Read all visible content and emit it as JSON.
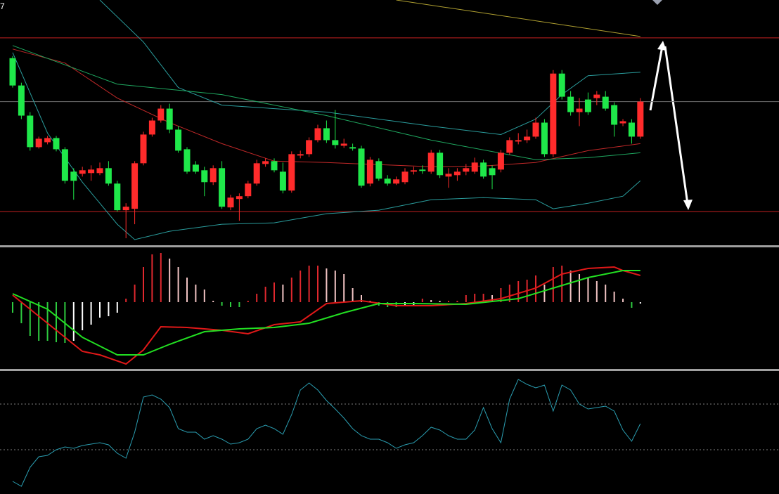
{
  "chart_data": [
    {
      "type": "candlestick",
      "corner_label": "7",
      "x": [
        0,
        1,
        2,
        3,
        4,
        5,
        6,
        7,
        8,
        9,
        10,
        11,
        12,
        13,
        14,
        15,
        16,
        17,
        18,
        19,
        20,
        21,
        22,
        23,
        24,
        25,
        26,
        27,
        28,
        29,
        30,
        31,
        32,
        33,
        34,
        35,
        36,
        37,
        38,
        39,
        40,
        41,
        42,
        43,
        44,
        45,
        46,
        47,
        48,
        49,
        50,
        51,
        52,
        53,
        54,
        55,
        56,
        57,
        58,
        59,
        60,
        61,
        62,
        63,
        64,
        65,
        66,
        67,
        68,
        69,
        70,
        71,
        72
      ],
      "open": [
        267,
        228,
        185,
        140,
        147,
        153,
        137,
        105,
        102,
        103,
        103,
        110,
        88,
        50,
        52,
        117,
        158,
        178,
        195,
        165,
        137,
        115,
        107,
        90,
        110,
        54,
        66,
        70,
        88,
        116,
        120,
        105,
        78,
        128,
        130,
        150,
        167,
        150,
        142,
        140,
        138,
        88,
        120,
        95,
        88,
        90,
        105,
        108,
        105,
        132,
        98,
        100,
        105,
        105,
        118,
        110,
        108,
        132,
        148,
        150,
        155,
        175,
        130,
        245,
        212,
        190,
        208,
        210,
        212,
        200,
        174,
        175,
        155
      ],
      "high": [
        270,
        232,
        190,
        155,
        156,
        156,
        140,
        110,
        112,
        114,
        118,
        120,
        92,
        60,
        120,
        162,
        182,
        200,
        202,
        170,
        140,
        120,
        112,
        114,
        120,
        72,
        74,
        92,
        122,
        124,
        124,
        118,
        134,
        135,
        154,
        172,
        178,
        193,
        152,
        145,
        142,
        126,
        124,
        100,
        98,
        110,
        112,
        114,
        136,
        136,
        110,
        110,
        116,
        125,
        122,
        114,
        136,
        154,
        160,
        165,
        182,
        180,
        250,
        250,
        220,
        210,
        218,
        220,
        220,
        204,
        180,
        180,
        210
      ],
      "low": [
        225,
        180,
        135,
        138,
        144,
        134,
        88,
        65,
        98,
        92,
        100,
        85,
        48,
        10,
        30,
        114,
        155,
        175,
        160,
        132,
        102,
        102,
        70,
        86,
        52,
        50,
        35,
        67,
        85,
        112,
        104,
        74,
        75,
        124,
        126,
        147,
        146,
        138,
        139,
        135,
        82,
        84,
        92,
        85,
        86,
        87,
        101,
        102,
        102,
        96,
        82,
        92,
        100,
        102,
        95,
        80,
        104,
        129,
        144,
        146,
        152,
        126,
        126,
        208,
        185,
        170,
        186,
        200,
        192,
        155,
        170,
        145,
        152
      ],
      "close": [
        228,
        185,
        140,
        152,
        153,
        137,
        92,
        92,
        107,
        108,
        110,
        88,
        50,
        55,
        117,
        158,
        178,
        195,
        165,
        135,
        105,
        105,
        90,
        110,
        55,
        68,
        70,
        88,
        117,
        120,
        107,
        78,
        130,
        130,
        150,
        167,
        150,
        143,
        145,
        138,
        85,
        122,
        95,
        88,
        94,
        105,
        107,
        106,
        132,
        100,
        102,
        105,
        110,
        118,
        98,
        100,
        132,
        150,
        150,
        155,
        175,
        130,
        245,
        212,
        190,
        195,
        190,
        215,
        195,
        172,
        177,
        155,
        205
      ],
      "up_color": "#ff2b2b",
      "down_color": "#1fe84a",
      "ylim": [
        0,
        350
      ],
      "xlim": [
        -1.45,
        87.9
      ],
      "series": [
        {
          "color": "#b0a030",
          "x": [
            44,
            72
          ],
          "values": [
            350,
            298
          ]
        },
        {
          "color": "#2a9d9d",
          "x": [
            10,
            15,
            19,
            24,
            36,
            48,
            56,
            60,
            63,
            66,
            72
          ],
          "values": [
            350,
            290,
            225,
            200,
            190,
            170,
            158,
            180,
            215,
            242,
            247
          ]
        },
        {
          "color": "#2a9d9d",
          "x": [
            0,
            4,
            8,
            12,
            14,
            18,
            24,
            30,
            36,
            42,
            48,
            54,
            60,
            62,
            66,
            70,
            72
          ],
          "values": [
            275,
            160,
            90,
            30,
            8,
            20,
            30,
            32,
            45,
            50,
            65,
            68,
            65,
            52,
            60,
            70,
            92
          ]
        },
        {
          "color": "#c02828",
          "x": [
            0,
            6,
            12,
            18,
            24,
            30,
            36,
            42,
            48,
            54,
            60,
            66,
            72
          ],
          "values": [
            280,
            260,
            210,
            175,
            145,
            120,
            118,
            115,
            112,
            113,
            118,
            135,
            145
          ]
        },
        {
          "color": "#1fa860",
          "x": [
            0,
            12,
            24,
            36,
            48,
            60,
            66,
            72
          ],
          "values": [
            285,
            230,
            215,
            185,
            150,
            122,
            125,
            132
          ]
        }
      ],
      "levels": [
        {
          "value": 296,
          "color": "#c42020"
        },
        {
          "value": 205,
          "color": "#707070"
        },
        {
          "value": 48,
          "color": "#c42020"
        }
      ]
    },
    {
      "type": "macd",
      "x": [
        0,
        1,
        2,
        3,
        4,
        5,
        6,
        7,
        8,
        9,
        10,
        11,
        12,
        13,
        14,
        15,
        16,
        17,
        18,
        19,
        20,
        21,
        22,
        23,
        24,
        25,
        26,
        27,
        28,
        29,
        30,
        31,
        32,
        33,
        34,
        35,
        36,
        37,
        38,
        39,
        40,
        41,
        42,
        43,
        44,
        45,
        46,
        47,
        48,
        49,
        50,
        51,
        52,
        53,
        54,
        55,
        56,
        57,
        58,
        59,
        60,
        61,
        62,
        63,
        64,
        65,
        66,
        67,
        68,
        69,
        70,
        71,
        72
      ],
      "values": [
        -15,
        -30,
        -48,
        -55,
        -55,
        -57,
        -58,
        -55,
        -40,
        -32,
        -22,
        -20,
        -15,
        5,
        25,
        50,
        68,
        70,
        62,
        50,
        35,
        25,
        18,
        2,
        -5,
        -7,
        -7,
        2,
        12,
        22,
        28,
        25,
        35,
        45,
        52,
        52,
        48,
        45,
        40,
        20,
        10,
        2,
        -5,
        -7,
        -7,
        -6,
        -5,
        5,
        3,
        2,
        2,
        2,
        10,
        12,
        12,
        10,
        20,
        25,
        30,
        32,
        38,
        25,
        50,
        52,
        45,
        40,
        35,
        30,
        25,
        15,
        5,
        -8,
        -2
      ],
      "colors": {
        "up": "#e0282e",
        "up_fading": "#f2c4c4",
        "down": "#2ecc40",
        "down_fading": "#ffffff"
      },
      "ylim": [
        -95,
        78
      ],
      "xlim": [
        -1.45,
        87.9
      ],
      "series": [
        {
          "color": "#e01818",
          "x": [
            0,
            4,
            8,
            10,
            13,
            15,
            17,
            20,
            24,
            27,
            30,
            33,
            36,
            40,
            44,
            48,
            52,
            56,
            60,
            63,
            66,
            69,
            70,
            72
          ],
          "values": [
            10,
            -30,
            -70,
            -75,
            -88,
            -68,
            -35,
            -36,
            -40,
            -45,
            -32,
            -28,
            -2,
            2,
            -5,
            -5,
            -2,
            5,
            20,
            40,
            48,
            50,
            45,
            38
          ]
        },
        {
          "color": "#22e022",
          "x": [
            0,
            4,
            8,
            12,
            15,
            18,
            22,
            26,
            30,
            34,
            38,
            42,
            46,
            52,
            58,
            62,
            66,
            70,
            72
          ],
          "values": [
            12,
            -10,
            -50,
            -75,
            -75,
            -60,
            -42,
            -38,
            -36,
            -30,
            -15,
            -2,
            -2,
            -3,
            5,
            20,
            35,
            45,
            45
          ]
        }
      ]
    },
    {
      "type": "line",
      "ylim": [
        0,
        175
      ],
      "xlim": [
        -1.45,
        87.9
      ],
      "series": [
        {
          "color": "#2a9db0",
          "x": [
            0,
            1,
            2,
            3,
            4,
            5,
            6,
            7,
            8,
            9,
            10,
            11,
            12,
            13,
            14,
            15,
            16,
            17,
            18,
            19,
            20,
            21,
            22,
            23,
            24,
            25,
            26,
            27,
            28,
            29,
            30,
            31,
            32,
            33,
            34,
            35,
            36,
            37,
            38,
            39,
            40,
            41,
            42,
            43,
            44,
            45,
            46,
            47,
            48,
            49,
            50,
            51,
            52,
            53,
            54,
            55,
            56,
            57,
            58,
            59,
            60,
            61,
            62,
            63,
            64,
            65,
            66,
            67,
            68,
            69,
            70,
            71,
            72
          ],
          "values": [
            18,
            11,
            38,
            53,
            55,
            63,
            67,
            65,
            69,
            71,
            73,
            70,
            58,
            51,
            88,
            138,
            141,
            135,
            123,
            93,
            88,
            88,
            78,
            83,
            78,
            71,
            73,
            78,
            93,
            98,
            93,
            85,
            113,
            148,
            158,
            148,
            133,
            121,
            108,
            93,
            83,
            78,
            78,
            73,
            65,
            70,
            73,
            83,
            95,
            91,
            83,
            78,
            78,
            91,
            123,
            93,
            73,
            135,
            163,
            156,
            151,
            155,
            118,
            155,
            148,
            128,
            121,
            123,
            125,
            118,
            91,
            75,
            100
          ]
        }
      ],
      "levels": [
        {
          "value": 128,
          "color": "#808080",
          "dash": true
        },
        {
          "value": 63,
          "color": "#808080",
          "dash": true
        }
      ]
    }
  ]
}
